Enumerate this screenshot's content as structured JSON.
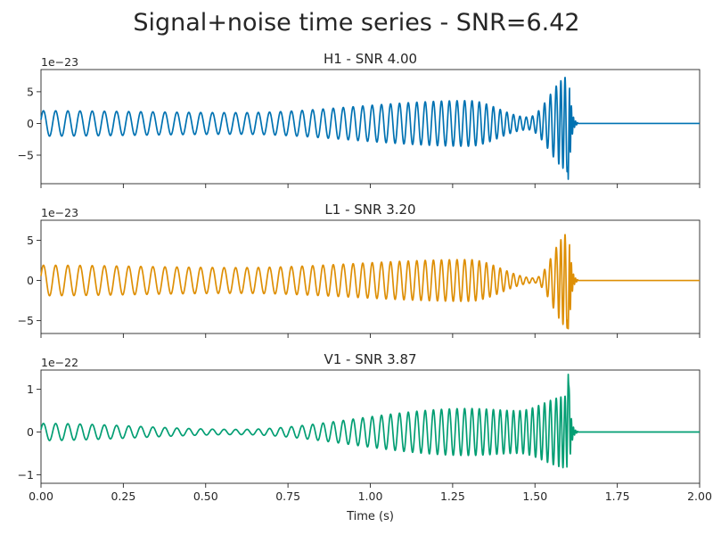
{
  "figure": {
    "title": "Signal+noise time series - SNR=6.42",
    "xlabel": "Time (s)"
  },
  "chart_data": [
    {
      "type": "line",
      "title": "H1 - SNR 4.00",
      "offset_label": "1e−23",
      "color": "#0072b2",
      "xlim": [
        0,
        2
      ],
      "ylim": [
        -9.5,
        8.5
      ],
      "yticks": [
        5,
        0,
        -5
      ],
      "ytick_labels": [
        "5",
        "0",
        "−5"
      ],
      "xticks": [
        0,
        0.25,
        0.5,
        0.75,
        1.0,
        1.25,
        1.5,
        1.75,
        2.0
      ],
      "waveform": {
        "early_amp": 2.0,
        "mid_amp": 1.7,
        "late_amp": 3.6,
        "dip_amp": 1.0,
        "burst_amp": 7.5,
        "neg_peak": -8.8,
        "f_start": 27,
        "f_end": 60,
        "merger_time": 1.605,
        "ringdown_end": 1.63,
        "pre_t": 0.12,
        "dip_t": 1.48
      },
      "series": [
        {
          "values_note": ""
        }
      ]
    },
    {
      "type": "line",
      "title": "L1 - SNR 3.20",
      "offset_label": "1e−23",
      "color": "#de8f05",
      "xlim": [
        0,
        2
      ],
      "ylim": [
        -6.6,
        7.5
      ],
      "yticks": [
        5,
        0,
        -5
      ],
      "ytick_labels": [
        "5",
        "0",
        "−5"
      ],
      "xticks": [
        0,
        0.25,
        0.5,
        0.75,
        1.0,
        1.25,
        1.5,
        1.75,
        2.0
      ],
      "waveform": {
        "early_amp": 1.9,
        "mid_amp": 1.6,
        "late_amp": 2.6,
        "dip_amp": 0.3,
        "burst_amp": 6.0,
        "neg_peak": -6.0,
        "f_start": 27,
        "f_end": 60,
        "merger_time": 1.605,
        "ringdown_end": 1.63,
        "pre_t": 0.12,
        "dip_t": 1.5
      },
      "series": [
        {
          "values_note": ""
        }
      ]
    },
    {
      "type": "line",
      "title": "V1 - SNR 3.87",
      "offset_label": "1e−22",
      "color": "#029e73",
      "xlim": [
        0,
        2
      ],
      "ylim": [
        -1.2,
        1.45
      ],
      "yticks": [
        1,
        0,
        -1
      ],
      "ytick_labels": [
        "1",
        "0",
        "−1"
      ],
      "xticks": [
        0,
        0.25,
        0.5,
        0.75,
        1.0,
        1.25,
        1.5,
        1.75,
        2.0
      ],
      "xtick_labels": [
        "0.00",
        "0.25",
        "0.50",
        "0.75",
        "1.00",
        "1.25",
        "1.50",
        "1.75",
        "2.00"
      ],
      "waveform": {
        "early_amp": 0.2,
        "mid_amp": 0.06,
        "late_amp": 0.55,
        "dip_amp": 0.5,
        "burst_amp": 0.85,
        "neg_peak": -1.1,
        "pos_peak": 1.35,
        "f_start": 27,
        "f_end": 60,
        "merger_time": 1.605,
        "ringdown_end": 1.63,
        "pre_t": 0.1,
        "dip_t": 1.45
      },
      "series": [
        {
          "values_note": ""
        }
      ]
    }
  ]
}
